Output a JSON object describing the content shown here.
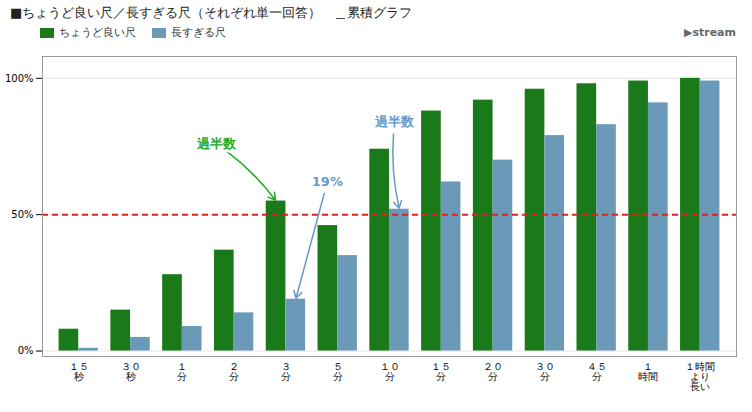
{
  "chart_data": {
    "type": "bar",
    "title": "■ちょうど良い尺／長すぎる尺（それぞれ単一回答）　＿累積グラフ",
    "caption": "▶stream",
    "categories": [
      "１５\n秒",
      "３０\n秒",
      "１\n分",
      "２\n分",
      "３\n分",
      "５\n分",
      "１０\n分",
      "１５\n分",
      "２０\n分",
      "３０\n分",
      "４５\n分",
      "１\n時間",
      "１時間\nより\n長い"
    ],
    "series": [
      {
        "name": "ちょうど良い尺",
        "color": "#1a7a1a",
        "values": [
          8,
          15,
          28,
          37,
          55,
          46,
          74,
          88,
          92,
          96,
          98,
          99,
          100
        ]
      },
      {
        "name": "長すぎる尺",
        "color": "#6b9ab8",
        "values": [
          1,
          5,
          9,
          14,
          19,
          35,
          52,
          62,
          70,
          79,
          83,
          91,
          99
        ]
      }
    ],
    "ylim": [
      -2,
      108
    ],
    "yticks": [
      {
        "value": 0,
        "label": "0%"
      },
      {
        "value": 50,
        "label": "50%"
      },
      {
        "value": 100,
        "label": "100%"
      }
    ],
    "grid": true,
    "legend": "upper left",
    "hlines": [
      {
        "value": 50,
        "color": "#dd2222",
        "line_style": "dashed"
      }
    ],
    "annotations": [
      {
        "text": "過半数",
        "color": "#22aa22",
        "category": "３\n分",
        "series": "ちょうど良い尺"
      },
      {
        "text": "過半数",
        "color": "#6699cc",
        "category": "１０\n分",
        "series": "長すぎる尺"
      },
      {
        "text": "19%",
        "color": "#6699cc",
        "category": "３\n分",
        "series": "長すぎる尺"
      }
    ]
  }
}
